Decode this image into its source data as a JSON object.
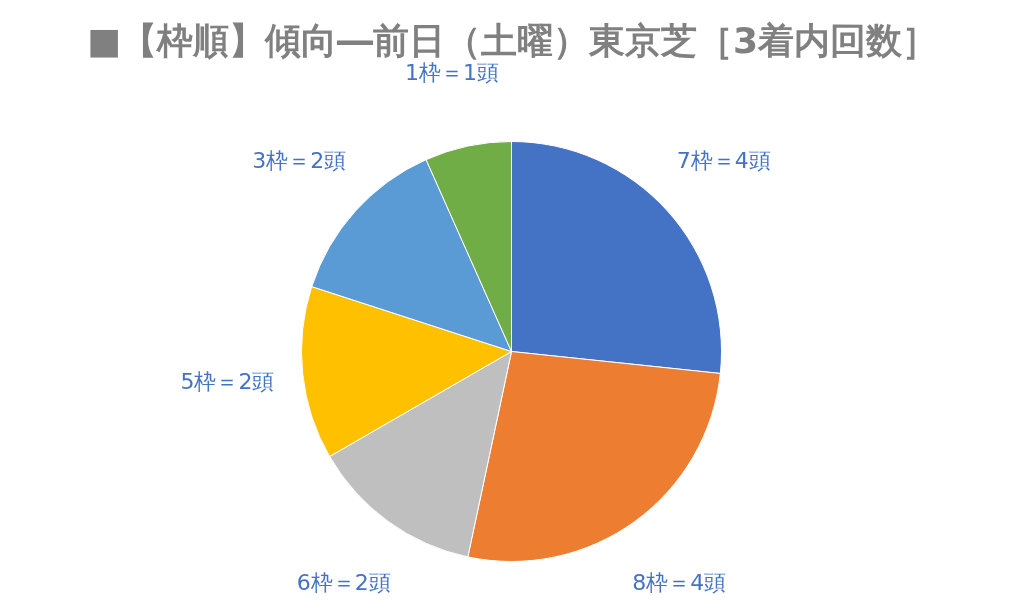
{
  "chart_data": {
    "type": "pie",
    "title": "■【枠順】傾向―前日（土曜）東京芝［3着内回数］",
    "categories": [
      "7枠＝4頭",
      "8枠＝4頭",
      "6枠＝2頭",
      "5枠＝2頭",
      "3枠＝2頭",
      "1枠＝1頭"
    ],
    "values": [
      4,
      4,
      2,
      2,
      2,
      1
    ],
    "colors": [
      "#4472c4",
      "#ed7d31",
      "#bfbfbf",
      "#ffc000",
      "#5b9bd5",
      "#70ad47"
    ],
    "legend": false
  }
}
